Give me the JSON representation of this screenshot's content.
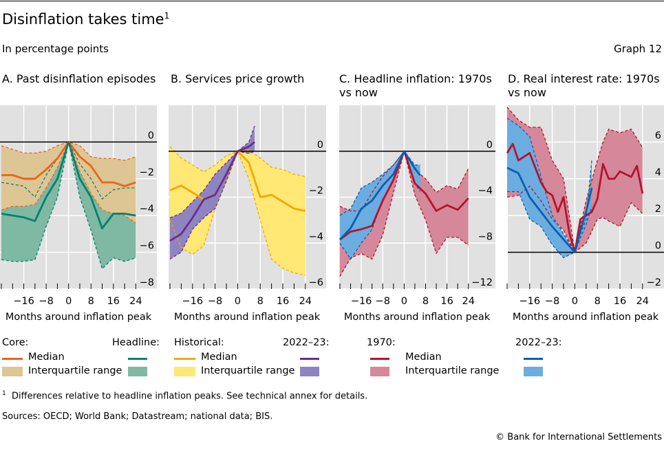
{
  "header": {
    "title": "Disinflation takes time",
    "title_sup": "1",
    "subtitle": "In percentage points",
    "graph_number": "Graph 12"
  },
  "legend": {
    "a": {
      "core": "Core:",
      "headline": "Headline:",
      "median": "Median",
      "iqr": "Interquartile range"
    },
    "b": {
      "historical": "Historical:",
      "recent": "2022–23:",
      "median": "Median",
      "iqr": "Interquartile range"
    },
    "cd": {
      "y1970": "1970:",
      "recent": "2022–23:",
      "median": "Median",
      "iqr": "Interquartile range"
    }
  },
  "footer": {
    "footnote_mark": "1",
    "footnote": "Differences relative to headline inflation peaks. See technical annex for details.",
    "sources": "Sources: OECD; World Bank; Datastream; national data; BIS.",
    "copyright": "© Bank for International Settlements"
  },
  "colors": {
    "grid_bg": "#e1e1e1"
  },
  "chart_data": [
    {
      "type": "area",
      "title": "A. Past disinflation episodes",
      "xlabel": "Months around inflation peak",
      "ylabel": "",
      "xlim": [
        -24,
        32
      ],
      "ylim": [
        -8,
        2
      ],
      "y_axis": "right",
      "grid": true,
      "xticks": [
        -16,
        -8,
        0,
        8,
        16,
        24
      ],
      "xtick_labels": [
        "−16",
        "−8",
        "0",
        "8",
        "16",
        "24"
      ],
      "yticks": [
        0,
        -2,
        -4,
        -6,
        -8
      ],
      "ytick_labels": [
        "0",
        "−2",
        "−4",
        "−6",
        "−8"
      ],
      "series": [
        {
          "name": "Headline interquartile range",
          "kind": "band",
          "fill": "#7fb8a3",
          "edge": "#00826e",
          "x": [
            -24,
            -20,
            -16,
            -12,
            -8,
            -4,
            0,
            4,
            8,
            12,
            16,
            20,
            24
          ],
          "upper": [
            -2.2,
            -2.3,
            -2.4,
            -3.0,
            -1.8,
            -0.9,
            0,
            -1.2,
            -2.0,
            -3.1,
            -2.6,
            -2.5,
            -2.5
          ],
          "lower": [
            -6.4,
            -6.5,
            -6.5,
            -6.4,
            -4.6,
            -3.0,
            0,
            -3.0,
            -4.8,
            -6.9,
            -6.3,
            -6.5,
            -6.3
          ]
        },
        {
          "name": "Core interquartile range",
          "kind": "band",
          "fill": "#dec594",
          "edge": "#e8651a",
          "x": [
            -24,
            -20,
            -16,
            -12,
            -8,
            -4,
            0,
            4,
            8,
            12,
            16,
            20,
            24
          ],
          "upper": [
            -0.2,
            -0.4,
            -0.6,
            -0.6,
            -0.5,
            -0.2,
            0,
            -0.2,
            -0.8,
            -0.9,
            -0.9,
            -1.0,
            -0.8
          ],
          "lower": [
            -3.7,
            -3.5,
            -3.5,
            -3.4,
            -2.5,
            -1.4,
            0,
            -1.6,
            -2.8,
            -3.7,
            -3.9,
            -4.0,
            -4.4
          ]
        },
        {
          "name": "Core median",
          "kind": "line",
          "color": "#e8651a",
          "x": [
            -24,
            -20,
            -16,
            -12,
            -8,
            -4,
            0,
            4,
            8,
            12,
            16,
            20,
            24
          ],
          "y": [
            -1.8,
            -1.8,
            -2.0,
            -2.0,
            -1.5,
            -0.9,
            0,
            -0.8,
            -1.3,
            -2.2,
            -2.2,
            -2.4,
            -2.2
          ]
        },
        {
          "name": "Headline median",
          "kind": "line",
          "color": "#00826e",
          "x": [
            -24,
            -20,
            -16,
            -12,
            -8,
            -4,
            0,
            4,
            8,
            12,
            16,
            20,
            24
          ],
          "y": [
            -3.9,
            -4.0,
            -4.1,
            -4.3,
            -3.0,
            -2.0,
            0,
            -2.0,
            -3.0,
            -4.7,
            -3.9,
            -3.9,
            -4.0
          ]
        }
      ]
    },
    {
      "type": "area",
      "title": "B. Services price growth",
      "xlabel": "Months around inflation peak",
      "ylabel": "",
      "xlim": [
        -24,
        32
      ],
      "ylim": [
        -6,
        2
      ],
      "y_axis": "right",
      "grid": true,
      "xticks": [
        -16,
        -8,
        0,
        8,
        16,
        24
      ],
      "xtick_labels": [
        "−16",
        "−8",
        "0",
        "8",
        "16",
        "24"
      ],
      "yticks": [
        0,
        -2,
        -4,
        -6
      ],
      "ytick_labels": [
        "0",
        "−2",
        "−4",
        "−6"
      ],
      "series": [
        {
          "name": "Historical interquartile range",
          "kind": "band",
          "fill": "#ffe873",
          "edge": "#f5a800",
          "x": [
            -24,
            -20,
            -16,
            -12,
            -8,
            -4,
            0,
            4,
            8,
            12,
            16,
            20,
            24
          ],
          "upper": [
            0.2,
            -0.3,
            -0.6,
            -0.9,
            -0.6,
            -0.2,
            0,
            0.05,
            -0.3,
            -0.7,
            -0.8,
            -1.0,
            -1.1
          ],
          "lower": [
            -3.0,
            -4.2,
            -4.5,
            -4.1,
            -2.5,
            -1.3,
            0,
            -1.2,
            -3.0,
            -4.7,
            -5.1,
            -5.3,
            -5.4
          ]
        },
        {
          "name": "2022–23 interquartile range",
          "kind": "band",
          "fill": "#8e85c0",
          "edge": "#6a2c91",
          "x": [
            -24,
            -20,
            -16,
            -12,
            -8,
            -4,
            0,
            4,
            6
          ],
          "upper": [
            -2.9,
            -2.7,
            -2.2,
            -1.7,
            -1.0,
            -0.5,
            0,
            0.4,
            1.1
          ],
          "lower": [
            -4.7,
            -4.4,
            -3.4,
            -2.9,
            -2.5,
            -1.3,
            0,
            -0.1,
            0
          ]
        },
        {
          "name": "Historical median",
          "kind": "line",
          "color": "#f5a800",
          "x": [
            -24,
            -20,
            -16,
            -12,
            -8,
            -4,
            0,
            4,
            8,
            12,
            16,
            20,
            24
          ],
          "y": [
            -1.7,
            -1.5,
            -1.8,
            -2.1,
            -1.9,
            -1.0,
            0,
            -0.5,
            -2.0,
            -1.9,
            -2.2,
            -2.5,
            -2.6
          ]
        },
        {
          "name": "2022–23 median",
          "kind": "line",
          "color": "#6a2c91",
          "x": [
            -24,
            -20,
            -16,
            -12,
            -8,
            -4,
            0,
            4,
            6
          ],
          "y": [
            -3.9,
            -3.6,
            -2.9,
            -2.1,
            -1.9,
            -1.0,
            0,
            0.2,
            0.4
          ]
        }
      ]
    },
    {
      "type": "area",
      "title": "C. Headline inflation: 1970s vs now",
      "xlabel": "Months around inflation peak",
      "ylabel": "",
      "xlim": [
        -24,
        32
      ],
      "ylim": [
        -12,
        4
      ],
      "y_axis": "right",
      "grid": true,
      "xticks": [
        -16,
        -8,
        0,
        8,
        16,
        24
      ],
      "xtick_labels": [
        "−16",
        "−8",
        "0",
        "8",
        "16",
        "24"
      ],
      "yticks": [
        0,
        -4,
        -8,
        -12
      ],
      "ytick_labels": [
        "0",
        "−4",
        "−8",
        "−12"
      ],
      "series": [
        {
          "name": "1970 interquartile range",
          "kind": "band",
          "fill": "#d4889a",
          "edge": "#b5122c",
          "x": [
            -24,
            -20,
            -16,
            -12,
            -8,
            -4,
            0,
            4,
            8,
            12,
            16,
            20,
            24
          ],
          "upper": [
            -4.8,
            -5.2,
            -5.2,
            -3.6,
            -2.2,
            -1.2,
            0,
            -1.6,
            -2.4,
            -3.6,
            -3.0,
            -3.3,
            -1.5
          ],
          "lower": [
            -10.9,
            -9.3,
            -8.9,
            -9.4,
            -7.3,
            -3.6,
            0,
            -3.8,
            -6.0,
            -8.9,
            -7.5,
            -7.5,
            -8.2
          ]
        },
        {
          "name": "2022–23 interquartile range",
          "kind": "band",
          "fill": "#6badE0",
          "edge": "#0a5fad",
          "x": [
            -24,
            -20,
            -16,
            -12,
            -8,
            -4,
            0,
            4,
            6
          ],
          "upper": [
            -5.6,
            -5.0,
            -3.2,
            -2.7,
            -2.0,
            -1.2,
            0,
            -1.2,
            -1.2
          ],
          "lower": [
            -8.0,
            -9.4,
            -8.0,
            -6.8,
            -4.2,
            -2.6,
            0,
            -2.8,
            -3.5
          ]
        },
        {
          "name": "1970 median",
          "kind": "line",
          "color": "#b5122c",
          "x": [
            -24,
            -20,
            -16,
            -12,
            -8,
            -4,
            0,
            4,
            8,
            12,
            16,
            20,
            24
          ],
          "y": [
            -7.7,
            -7.0,
            -6.8,
            -6.5,
            -4.3,
            -2.5,
            0,
            -2.8,
            -3.7,
            -5.2,
            -4.7,
            -5.1,
            -4.1
          ]
        },
        {
          "name": "2022–23 median",
          "kind": "line",
          "color": "#0a5fad",
          "x": [
            -24,
            -20,
            -16,
            -12,
            -8,
            -4,
            0,
            4,
            6
          ],
          "y": [
            -7.7,
            -6.7,
            -5.0,
            -4.3,
            -3.0,
            -2.0,
            0,
            -1.5,
            -2.1
          ]
        }
      ]
    },
    {
      "type": "area",
      "title": "D. Real interest rate: 1970s vs now",
      "xlabel": "Months around inflation peak",
      "ylabel": "",
      "xlim": [
        -24,
        32
      ],
      "ylim": [
        -2,
        8
      ],
      "y_axis": "right",
      "grid": true,
      "xticks": [
        -16,
        -8,
        0,
        8,
        16,
        24
      ],
      "xtick_labels": [
        "−16",
        "−8",
        "0",
        "8",
        "16",
        "24"
      ],
      "yticks": [
        6,
        4,
        2,
        0,
        -2
      ],
      "ytick_labels": [
        "6",
        "4",
        "2",
        "0",
        "−2"
      ],
      "series": [
        {
          "name": "1970 interquartile range",
          "kind": "band",
          "fill": "#d4889a",
          "edge": "#b5122c",
          "x": [
            -24,
            -20,
            -16,
            -12,
            -8,
            -4,
            0,
            4,
            8,
            10,
            12,
            16,
            20,
            24
          ],
          "upper": [
            7.9,
            7.2,
            6.8,
            6.8,
            5.0,
            4.0,
            0,
            2.8,
            5.0,
            6.0,
            6.7,
            6.5,
            6.7,
            5.7
          ],
          "lower": [
            3.0,
            3.1,
            3.6,
            2.8,
            1.8,
            1.2,
            0,
            0.5,
            1.8,
            1.9,
            1.7,
            1.4,
            2.7,
            2.1
          ]
        },
        {
          "name": "2022–23 interquartile range",
          "kind": "band",
          "fill": "#6bade0",
          "edge": "#0a5fad",
          "x": [
            -24,
            -20,
            -16,
            -12,
            -8,
            -4,
            0,
            2,
            4,
            6
          ],
          "upper": [
            7.3,
            6.9,
            6.3,
            4.1,
            2.0,
            1.0,
            0,
            1.0,
            1.8,
            5.0
          ],
          "lower": [
            3.3,
            3.3,
            1.8,
            1.4,
            0.4,
            -0.3,
            0,
            0.8,
            1.5,
            2.5
          ]
        },
        {
          "name": "1970 median",
          "kind": "line",
          "color": "#b5122c",
          "x": [
            -24,
            -22,
            -20,
            -16,
            -12,
            -10,
            -8,
            -6,
            -4,
            -2,
            0,
            2,
            4,
            6,
            8,
            10,
            12,
            14,
            16,
            20,
            22,
            24
          ],
          "y": [
            5.4,
            5.9,
            5.0,
            5.4,
            3.8,
            3.3,
            3.1,
            2.2,
            3.0,
            1.1,
            0,
            1.8,
            2.0,
            2.2,
            2.9,
            4.8,
            4.0,
            4.0,
            4.4,
            4.1,
            4.7,
            3.2
          ]
        },
        {
          "name": "2022–23 median",
          "kind": "line",
          "color": "#0a5fad",
          "x": [
            -24,
            -20,
            -16,
            -12,
            -8,
            -4,
            0,
            2,
            4,
            6
          ],
          "y": [
            4.6,
            4.3,
            3.0,
            2.2,
            1.4,
            0.7,
            0,
            1.2,
            2.2,
            3.5
          ]
        }
      ]
    }
  ]
}
